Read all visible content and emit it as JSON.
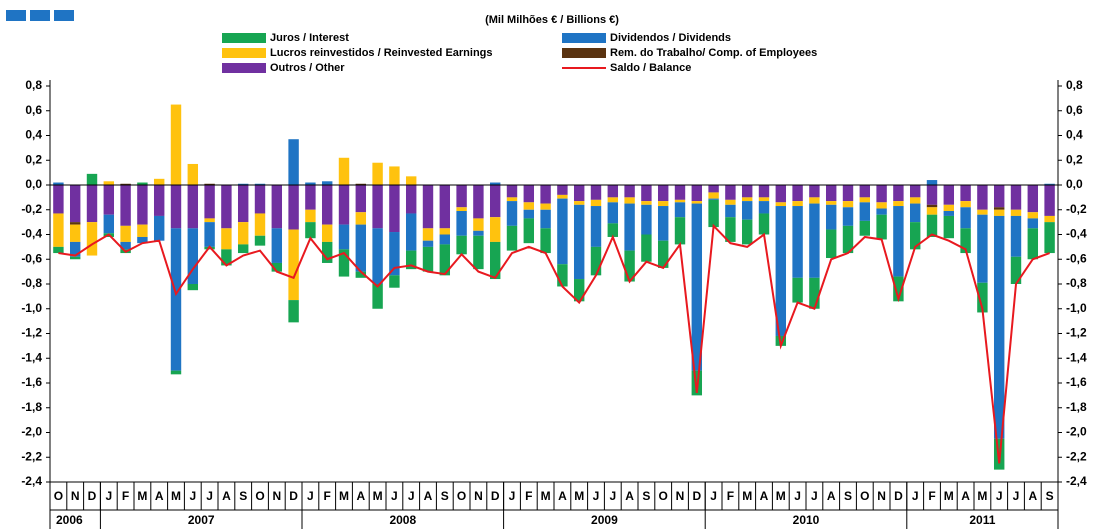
{
  "chart_data": {
    "type": "bar",
    "stacked": true,
    "subtitle": "(Mil Milhões € / Billions €)",
    "categories": [
      "O",
      "N",
      "D",
      "J",
      "F",
      "M",
      "A",
      "M",
      "J",
      "J",
      "A",
      "S",
      "O",
      "N",
      "D",
      "J",
      "F",
      "M",
      "A",
      "M",
      "J",
      "J",
      "A",
      "S",
      "O",
      "N",
      "D",
      "J",
      "F",
      "M",
      "A",
      "M",
      "J",
      "J",
      "A",
      "S",
      "O",
      "N",
      "D",
      "J",
      "F",
      "M",
      "A",
      "M",
      "J",
      "J",
      "A",
      "S",
      "O",
      "N",
      "D",
      "J",
      "F",
      "M",
      "A",
      "M",
      "J",
      "J",
      "A",
      "S"
    ],
    "year_groups": [
      {
        "label": "2006",
        "months": 3
      },
      {
        "label": "2007",
        "months": 12
      },
      {
        "label": "2008",
        "months": 12
      },
      {
        "label": "2009",
        "months": 12
      },
      {
        "label": "2010",
        "months": 12
      },
      {
        "label": "2011",
        "months": 9
      }
    ],
    "series": [
      {
        "name": "Juros / Interest",
        "color": "#17a552",
        "values": [
          -0.05,
          -0.02,
          0.09,
          -0.03,
          -0.03,
          0.02,
          0,
          -0.03,
          -0.05,
          -0.02,
          -0.13,
          -0.07,
          -0.08,
          -0.07,
          -0.18,
          -0.13,
          -0.17,
          -0.22,
          -0.05,
          -0.2,
          -0.1,
          -0.15,
          -0.2,
          -0.25,
          -0.15,
          -0.27,
          -0.3,
          -0.2,
          -0.2,
          -0.2,
          -0.18,
          -0.18,
          -0.23,
          -0.11,
          -0.25,
          -0.22,
          -0.22,
          -0.22,
          -0.2,
          -0.22,
          -0.2,
          -0.2,
          -0.17,
          -0.08,
          -0.2,
          -0.25,
          -0.23,
          -0.22,
          -0.12,
          -0.2,
          -0.2,
          -0.22,
          -0.18,
          -0.18,
          -0.2,
          -0.24,
          -0.25,
          -0.22,
          -0.25,
          -0.25
        ]
      },
      {
        "name": "Dividendos / Dividends",
        "color": "#1f74c4",
        "values": [
          0.02,
          -0.12,
          0,
          -0.15,
          -0.06,
          -0.05,
          -0.2,
          -1.15,
          -0.45,
          -0.2,
          0,
          0.01,
          0.01,
          -0.28,
          0.37,
          0.02,
          0.03,
          -0.2,
          -0.38,
          -0.45,
          -0.35,
          -0.3,
          -0.05,
          -0.08,
          -0.2,
          -0.04,
          0.02,
          -0.2,
          -0.07,
          -0.15,
          -0.53,
          -0.6,
          -0.33,
          -0.17,
          -0.38,
          -0.24,
          -0.28,
          -0.12,
          -1.35,
          -0.01,
          -0.1,
          -0.15,
          -0.1,
          -1.05,
          -0.58,
          -0.6,
          -0.2,
          -0.15,
          -0.15,
          -0.05,
          -0.57,
          -0.15,
          0.04,
          -0.04,
          -0.17,
          -0.55,
          -1.8,
          -0.33,
          -0.08,
          0.01
        ]
      },
      {
        "name": "Lucros reinvestidos / Reinvested Earnings",
        "color": "#ffc20e",
        "values": [
          -0.27,
          -0.14,
          -0.27,
          0.03,
          -0.13,
          -0.1,
          0.05,
          0.65,
          0.17,
          -0.03,
          -0.17,
          -0.18,
          -0.18,
          0,
          -0.57,
          -0.1,
          -0.14,
          0.22,
          -0.1,
          0.18,
          0.15,
          0.07,
          -0.1,
          -0.05,
          -0.03,
          -0.1,
          -0.2,
          -0.03,
          -0.06,
          -0.05,
          -0.03,
          -0.03,
          -0.05,
          -0.04,
          -0.05,
          -0.03,
          -0.04,
          -0.02,
          -0.02,
          -0.05,
          -0.04,
          -0.03,
          -0.03,
          -0.03,
          -0.04,
          -0.05,
          -0.03,
          -0.05,
          -0.04,
          -0.05,
          -0.04,
          -0.05,
          -0.06,
          -0.05,
          -0.05,
          -0.04,
          -0.05,
          -0.05,
          -0.05,
          -0.05
        ]
      },
      {
        "name": "Rem. do Trabalho/ Comp. of Employees",
        "color": "#5a3310",
        "values": [
          0,
          -0.02,
          0,
          0,
          0.01,
          0,
          0,
          0,
          0,
          0.01,
          0,
          0,
          0,
          0,
          0,
          0,
          0,
          0,
          0.01,
          0,
          0,
          0,
          0,
          0,
          0,
          0,
          0,
          0,
          0,
          0,
          0,
          0,
          0,
          0,
          0,
          0,
          0,
          0,
          0,
          0,
          0,
          0,
          0,
          0,
          0,
          0,
          0,
          0,
          0,
          0,
          0,
          0,
          -0.02,
          0,
          0,
          0,
          -0.02,
          0,
          0,
          0
        ]
      },
      {
        "name": "Outros / Other",
        "color": "#7030a0",
        "values": [
          -0.23,
          -0.3,
          -0.3,
          -0.24,
          -0.33,
          -0.32,
          -0.25,
          -0.35,
          -0.35,
          -0.27,
          -0.35,
          -0.3,
          -0.23,
          -0.35,
          -0.36,
          -0.2,
          -0.32,
          -0.32,
          -0.22,
          -0.35,
          -0.38,
          -0.23,
          -0.35,
          -0.35,
          -0.18,
          -0.27,
          -0.26,
          -0.1,
          -0.14,
          -0.15,
          -0.08,
          -0.13,
          -0.12,
          -0.1,
          -0.1,
          -0.13,
          -0.13,
          -0.12,
          -0.13,
          -0.06,
          -0.12,
          -0.1,
          -0.1,
          -0.14,
          -0.13,
          -0.1,
          -0.13,
          -0.13,
          -0.1,
          -0.14,
          -0.13,
          -0.1,
          -0.16,
          -0.16,
          -0.13,
          -0.2,
          -0.18,
          -0.2,
          -0.22,
          -0.25
        ]
      },
      {
        "name": "Saldo / Balance",
        "color": "#e8191f",
        "type": "line",
        "values": [
          -0.55,
          -0.57,
          -0.48,
          -0.4,
          -0.54,
          -0.47,
          -0.45,
          -0.88,
          -0.68,
          -0.5,
          -0.65,
          -0.57,
          -0.53,
          -0.7,
          -0.75,
          -0.43,
          -0.6,
          -0.55,
          -0.7,
          -0.82,
          -0.67,
          -0.65,
          -0.7,
          -0.72,
          -0.56,
          -0.7,
          -0.75,
          -0.55,
          -0.5,
          -0.55,
          -0.82,
          -0.95,
          -0.73,
          -0.42,
          -0.78,
          -0.62,
          -0.67,
          -0.48,
          -1.68,
          -0.33,
          -0.47,
          -0.5,
          -0.4,
          -1.3,
          -0.95,
          -1.0,
          -0.6,
          -0.55,
          -0.42,
          -0.44,
          -0.92,
          -0.5,
          -0.4,
          -0.45,
          -0.52,
          -1.0,
          -2.25,
          -0.8,
          -0.6,
          -0.55
        ]
      }
    ],
    "ylim": [
      -2.4,
      0.8
    ],
    "yticks": [
      {
        "value": 0.8,
        "label": "0,8"
      },
      {
        "value": 0.6,
        "label": "0,6"
      },
      {
        "value": 0.4,
        "label": "0,4"
      },
      {
        "value": 0.2,
        "label": "0,2"
      },
      {
        "value": 0,
        "label": "0,0"
      },
      {
        "value": -0.2,
        "label": "-0,2"
      },
      {
        "value": -0.4,
        "label": "-0,4"
      },
      {
        "value": -0.6,
        "label": "-0,6"
      },
      {
        "value": -0.8,
        "label": "-0,8"
      },
      {
        "value": -1.0,
        "label": "-1,0"
      },
      {
        "value": -1.2,
        "label": "-1,2"
      },
      {
        "value": -1.4,
        "label": "-1,4"
      },
      {
        "value": -1.6,
        "label": "-1,6"
      },
      {
        "value": -1.8,
        "label": "-1,8"
      },
      {
        "value": -2.0,
        "label": "-2,0"
      },
      {
        "value": -2.2,
        "label": "-2,2"
      },
      {
        "value": -2.4,
        "label": "-2,4"
      }
    ],
    "grid": false
  }
}
